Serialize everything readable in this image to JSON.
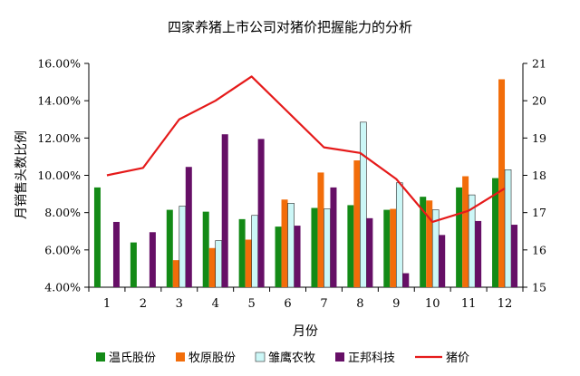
{
  "chart_data": {
    "type": "bar",
    "title": "四家养猪上市公司对猪价把握能力的分析",
    "xlabel": "月份",
    "ylabel": "月销售头数比例",
    "categories": [
      "1",
      "2",
      "3",
      "4",
      "5",
      "6",
      "7",
      "8",
      "9",
      "10",
      "11",
      "12"
    ],
    "y_left": {
      "min": 4.0,
      "max": 16.0,
      "step": 2.0,
      "tick_labels": [
        "4.00%",
        "6.00%",
        "8.00%",
        "10.00%",
        "12.00%",
        "14.00%",
        "16.00%"
      ]
    },
    "y_right": {
      "min": 15,
      "max": 21,
      "step": 1,
      "tick_labels": [
        "15",
        "16",
        "17",
        "18",
        "19",
        "20",
        "21"
      ]
    },
    "grid": false,
    "legend_position": "bottom",
    "series": [
      {
        "name": "温氏股份",
        "type": "bar",
        "axis": "left",
        "color": "#138a16",
        "values": [
          9.35,
          6.4,
          8.15,
          8.05,
          7.65,
          7.25,
          8.25,
          8.4,
          8.15,
          8.85,
          9.35,
          9.85
        ]
      },
      {
        "name": "牧原股份",
        "type": "bar",
        "axis": "left",
        "color": "#f26d0a",
        "values": [
          null,
          null,
          5.45,
          6.1,
          6.55,
          8.7,
          10.15,
          10.8,
          8.2,
          8.65,
          9.95,
          15.15
        ]
      },
      {
        "name": "雏鹰农牧",
        "type": "bar",
        "axis": "left",
        "color": "#ccf7f7",
        "values": [
          null,
          null,
          8.35,
          6.5,
          7.85,
          8.5,
          8.2,
          12.85,
          9.6,
          8.15,
          8.95,
          10.3
        ]
      },
      {
        "name": "正邦科技",
        "type": "bar",
        "axis": "left",
        "color": "#660f66",
        "values": [
          7.5,
          6.95,
          10.45,
          12.2,
          11.95,
          7.3,
          9.35,
          7.7,
          4.75,
          6.8,
          7.55,
          7.35
        ]
      },
      {
        "name": "猪价",
        "type": "line",
        "axis": "right",
        "color": "#e51a1a",
        "values": [
          18.0,
          18.2,
          19.5,
          20.0,
          20.65,
          19.7,
          18.75,
          18.6,
          17.9,
          16.75,
          17.05,
          17.65
        ]
      }
    ]
  }
}
